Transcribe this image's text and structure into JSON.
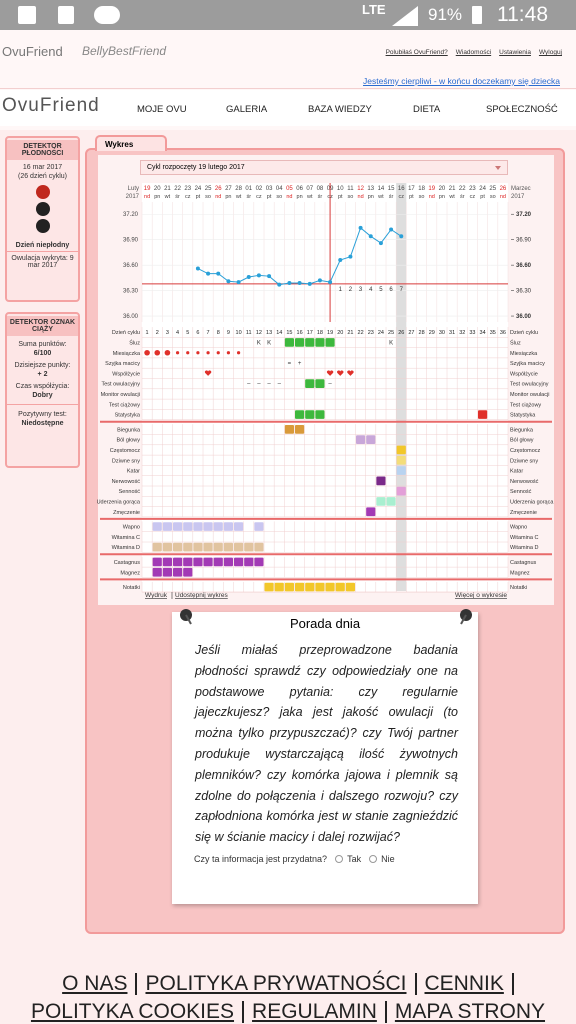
{
  "status_bar": {
    "network": "LTE",
    "battery": "91%",
    "time": "11:48"
  },
  "header": {
    "logo": "OvuFriend",
    "logo2": "BellyBestFriend",
    "links": [
      "Polubiłaś OvuFriend?",
      "Wiadomości",
      "Ustawienia",
      "Wyloguj"
    ],
    "tagline": "Jesteśmy cierpliwi - w końcu doczekamy się dziecka"
  },
  "nav": {
    "logo": "OvuFriend",
    "items": [
      "MOJE OVU",
      "GALERIA",
      "BAZA WIEDZY",
      "DIETA",
      "SPOŁECZNOŚĆ"
    ]
  },
  "fertility_detector": {
    "title": "DETEKTOR PŁODNOŚCI",
    "date": "16 mar 2017",
    "cycle_day": "(26 dzień cyklu)",
    "status": "Dzień niepłodny",
    "ovulation": "Owulacja wykryta: 9 mar 2017"
  },
  "pregnancy_detector": {
    "title": "DETEKTOR OZNAK CIĄŻY",
    "items": [
      {
        "label": "Suma punktów:",
        "value": "6/100"
      },
      {
        "label": "Dzisiejsze punkty:",
        "value": "+ 2"
      },
      {
        "label": "Czas współżycia:",
        "value": "Dobry"
      },
      {
        "label": "Pozytywny test:",
        "value": "Niedostępne"
      }
    ]
  },
  "panel": {
    "tab": "Wykres",
    "cycle_select": "Cykl rozpoczęty 19 lutego 2017",
    "links": [
      "Wydruk",
      "Udostępnij wykres"
    ],
    "more": "Więcej o wykresie"
  },
  "chart": {
    "month_left": [
      "Luty",
      "2017"
    ],
    "month_right": [
      "Marzec",
      "2017"
    ],
    "dates": [
      "19",
      "20",
      "21",
      "22",
      "23",
      "24",
      "25",
      "26",
      "27",
      "28",
      "01",
      "02",
      "03",
      "04",
      "05",
      "06",
      "07",
      "08",
      "09",
      "10",
      "11",
      "12",
      "13",
      "14",
      "15",
      "16",
      "17",
      "18",
      "19",
      "20",
      "21",
      "22",
      "23",
      "24",
      "25",
      "26"
    ],
    "weekdays": [
      "nd",
      "pn",
      "wt",
      "śr",
      "cz",
      "pt",
      "so",
      "nd",
      "pn",
      "wt",
      "śr",
      "cz",
      "pt",
      "so",
      "nd",
      "pn",
      "wt",
      "śr",
      "cz",
      "pt",
      "so",
      "nd",
      "pn",
      "wt",
      "śr",
      "cz",
      "pt",
      "so",
      "nd",
      "pn",
      "wt",
      "śr",
      "cz",
      "pt",
      "so",
      "nd"
    ],
    "today_day": 26,
    "temperature": {
      "days": [
        6,
        7,
        8,
        9,
        10,
        11,
        12,
        13,
        14,
        15,
        16,
        17,
        18,
        19,
        20,
        21,
        22,
        23,
        24,
        25,
        26
      ],
      "values": [
        36.56,
        36.5,
        36.5,
        36.41,
        36.4,
        36.46,
        36.48,
        36.47,
        36.37,
        36.39,
        36.39,
        36.38,
        36.42,
        36.4,
        36.66,
        36.7,
        37.04,
        36.94,
        36.86,
        37.02,
        36.94
      ],
      "color": "#2aa0d8",
      "ylim": [
        35.93,
        37.25
      ],
      "yticks": [
        {
          "value": 37.2,
          "label": "37.20"
        },
        {
          "value": 36.9,
          "label": "36.90"
        },
        {
          "value": 36.6,
          "label": "36.60"
        },
        {
          "value": 36.3,
          "label": "36.30"
        },
        {
          "value": 36.0,
          "label": "36.00"
        }
      ],
      "cover_line": 36.38,
      "ovulation_day": 19,
      "post_ovulation_days": [
        1,
        2,
        3,
        4,
        5,
        6,
        7
      ]
    },
    "groups": [
      {
        "rows": [
          {
            "label": "Dzień cyklu",
            "numbers": [
              1,
              2,
              3,
              4,
              5,
              6,
              7,
              8,
              9,
              10,
              11,
              12,
              13,
              14,
              15,
              16,
              17,
              18,
              19,
              20,
              21,
              22,
              23,
              24,
              25,
              26,
              27,
              28,
              29,
              30,
              31,
              32,
              33,
              34,
              35,
              36
            ]
          },
          {
            "label": "Śluz",
            "cells": [
              {
                "days": [
                  15,
                  16,
                  17,
                  18,
                  19
                ],
                "color": "#3db83d",
                "shape": "box"
              }
            ],
            "symbols": [
              {
                "day": 12,
                "text": "K"
              },
              {
                "day": 13,
                "text": "K"
              },
              {
                "day": 25,
                "text": "K"
              }
            ]
          },
          {
            "label": "Miesiączka",
            "cells": [
              {
                "days": [
                  1,
                  2,
                  3,
                  4,
                  5,
                  6,
                  7,
                  8,
                  9,
                  10
                ],
                "color": "#e0302a",
                "shape": "drop"
              }
            ]
          },
          {
            "label": "Szyjka macicy",
            "symbols": [
              {
                "day": 15,
                "text": "="
              },
              {
                "day": 16,
                "text": "+"
              }
            ]
          },
          {
            "label": "Współżycie",
            "cells": [
              {
                "days": [
                  7,
                  19,
                  20,
                  21
                ],
                "color": "#e0302a",
                "shape": "heart"
              }
            ]
          },
          {
            "label": "Test owulacyjny",
            "cells": [
              {
                "days": [
                  17,
                  18
                ],
                "color": "#3db83d",
                "shape": "box"
              }
            ],
            "symbols": [
              {
                "day": 11,
                "text": "–"
              },
              {
                "day": 12,
                "text": "–"
              },
              {
                "day": 13,
                "text": "–"
              },
              {
                "day": 14,
                "text": "–"
              },
              {
                "day": 19,
                "text": "–"
              }
            ]
          },
          {
            "label": "Monitor owulacji"
          },
          {
            "label": "Test ciążowy"
          },
          {
            "label": "Statystyka",
            "cells": [
              {
                "days": [
                  16,
                  17,
                  18
                ],
                "color": "#3db83d",
                "shape": "box"
              },
              {
                "days": [
                  34
                ],
                "color": "#e0302a",
                "shape": "box"
              }
            ]
          }
        ]
      },
      {
        "rows": [
          {
            "label": "Biegunka",
            "cells": [
              {
                "days": [
                  15,
                  16
                ],
                "color": "#d99a3a",
                "shape": "box"
              }
            ]
          },
          {
            "label": "Ból głowy",
            "cells": [
              {
                "days": [
                  22,
                  23
                ],
                "color": "#c8a7d9",
                "shape": "box"
              }
            ]
          },
          {
            "label": "Częstomocz",
            "cells": [
              {
                "days": [
                  26
                ],
                "color": "#f2c72a",
                "shape": "box"
              }
            ]
          },
          {
            "label": "Dziwne sny",
            "cells": [
              {
                "days": [
                  26
                ],
                "color": "#f4dd7a",
                "shape": "box"
              }
            ]
          },
          {
            "label": "Katar",
            "cells": [
              {
                "days": [
                  26
                ],
                "color": "#b9d3f0",
                "shape": "box"
              }
            ]
          },
          {
            "label": "Nerwowość",
            "cells": [
              {
                "days": [
                  24
                ],
                "color": "#7a2a8a",
                "shape": "box"
              }
            ]
          },
          {
            "label": "Senność",
            "cells": [
              {
                "days": [
                  26
                ],
                "color": "#e39fd8",
                "shape": "box"
              }
            ]
          },
          {
            "label": "Uderzenia gorąca",
            "cells": [
              {
                "days": [
                  24,
                  25
                ],
                "color": "#a8efd0",
                "shape": "box"
              }
            ]
          },
          {
            "label": "Zmęczenie",
            "cells": [
              {
                "days": [
                  23
                ],
                "color": "#a23ab5",
                "shape": "box"
              }
            ]
          }
        ]
      },
      {
        "rows": [
          {
            "label": "Wapno",
            "cells": [
              {
                "days": [
                  2,
                  3,
                  4,
                  5,
                  6,
                  7,
                  8,
                  9,
                  10,
                  12
                ],
                "color": "#c9c6f0",
                "shape": "box"
              }
            ]
          },
          {
            "label": "Witamina C"
          },
          {
            "label": "Witamina D",
            "cells": [
              {
                "days": [
                  2,
                  3,
                  4,
                  5,
                  6,
                  7,
                  8,
                  9,
                  10,
                  11,
                  12
                ],
                "color": "#e1c4a0",
                "shape": "box"
              }
            ]
          }
        ]
      },
      {
        "rows": [
          {
            "label": "Castagnus",
            "cells": [
              {
                "days": [
                  2,
                  3,
                  4,
                  5,
                  6,
                  7,
                  8,
                  9,
                  10,
                  11,
                  12
                ],
                "color": "#a23ab5",
                "shape": "box"
              }
            ]
          },
          {
            "label": "Magnez",
            "cells": [
              {
                "days": [
                  2,
                  3,
                  4,
                  5
                ],
                "color": "#a23ab5",
                "shape": "box"
              }
            ]
          }
        ]
      },
      {
        "rows": [
          {
            "label": "Notatki",
            "cells": [
              {
                "days": [
                  13,
                  14,
                  15,
                  16,
                  17,
                  18,
                  19,
                  20,
                  21
                ],
                "color": "#f2c72a",
                "shape": "box"
              }
            ]
          }
        ]
      }
    ]
  },
  "tip": {
    "title": "Porada dnia",
    "text": "Jeśli miałaś przeprowadzone badania płodności sprawdź czy odpowiedziały one na podstawowe pytania: czy regularnie jajeczkujesz? jaka jest jakość owulacji (to można tylko przypuszczać)? czy Twój partner produkuje wystarczającą ilość żywotnych plemników? czy komórka jajowa i plemnik są zdolne do połączenia i dalszego rozwoju? czy zapłodniona komórka jest w stanie zagnieździć się w ścianie macicy i dalej rozwijać?",
    "question": "Czy ta informacja jest przydatna?",
    "options": [
      "Tak",
      "Nie"
    ]
  },
  "footer": {
    "rows": [
      [
        "O NAS",
        "POLITYKA PRYWATNOŚCI",
        "CENNIK"
      ],
      [
        "POLITYKA COOKIES",
        "REGULAMIN",
        "MAPA STRONY"
      ]
    ]
  }
}
